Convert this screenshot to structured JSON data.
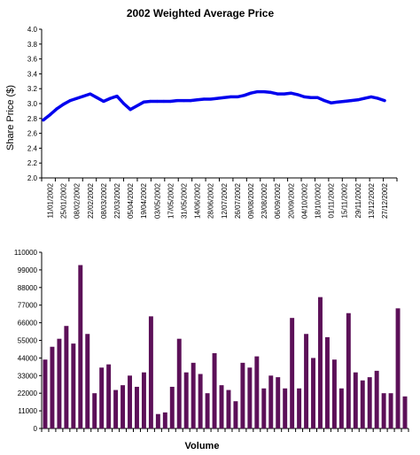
{
  "chart_data": [
    {
      "type": "line",
      "title": "2002 Weighted Average Price",
      "xlabel": "",
      "ylabel": "Share Price ($)",
      "ylim": [
        2.0,
        4.0
      ],
      "yticks": [
        "2.0",
        "2.2",
        "2.4",
        "2.6",
        "2.8",
        "3.0",
        "3.2",
        "3.4",
        "3.6",
        "3.8",
        "4.0"
      ],
      "grid": false,
      "color": "#0000ee",
      "xtick_labels": [
        "11/01/2002",
        "25/01/2002",
        "08/02/2002",
        "22/02/2002",
        "08/03/2002",
        "22/03/2002",
        "05/04/2002",
        "19/04/2002",
        "03/05/2002",
        "17/05/2002",
        "31/05/2002",
        "14/06/2002",
        "28/06/2002",
        "12/07/2002",
        "26/07/2002",
        "09/08/2002",
        "23/08/2002",
        "06/09/2002",
        "20/09/2002",
        "04/10/2002",
        "18/10/2002",
        "01/11/2002",
        "15/11/2002",
        "29/11/2002",
        "13/12/2002",
        "27/12/2002"
      ],
      "x": [
        "04/01/2002",
        "11/01/2002",
        "18/01/2002",
        "25/01/2002",
        "01/02/2002",
        "08/02/2002",
        "15/02/2002",
        "22/02/2002",
        "01/03/2002",
        "08/03/2002",
        "15/03/2002",
        "22/03/2002",
        "29/03/2002",
        "05/04/2002",
        "12/04/2002",
        "19/04/2002",
        "26/04/2002",
        "03/05/2002",
        "10/05/2002",
        "17/05/2002",
        "24/05/2002",
        "31/05/2002",
        "07/06/2002",
        "14/06/2002",
        "21/06/2002",
        "28/06/2002",
        "05/07/2002",
        "12/07/2002",
        "19/07/2002",
        "26/07/2002",
        "02/08/2002",
        "09/08/2002",
        "16/08/2002",
        "23/08/2002",
        "30/08/2002",
        "06/09/2002",
        "13/09/2002",
        "20/09/2002",
        "27/09/2002",
        "04/10/2002",
        "11/10/2002",
        "18/10/2002",
        "25/10/2002",
        "01/11/2002",
        "08/11/2002",
        "15/11/2002",
        "22/11/2002",
        "29/11/2002",
        "06/12/2002",
        "13/12/2002",
        "20/12/2002",
        "27/12/2002"
      ],
      "values": [
        2.78,
        2.85,
        2.93,
        2.99,
        3.04,
        3.07,
        3.1,
        3.13,
        3.08,
        3.03,
        3.07,
        3.1,
        3.0,
        2.92,
        2.97,
        3.02,
        3.03,
        3.03,
        3.03,
        3.03,
        3.04,
        3.04,
        3.04,
        3.05,
        3.06,
        3.06,
        3.07,
        3.08,
        3.09,
        3.09,
        3.11,
        3.14,
        3.16,
        3.16,
        3.15,
        3.13,
        3.13,
        3.14,
        3.12,
        3.09,
        3.08,
        3.08,
        3.04,
        3.01,
        3.02,
        3.03,
        3.04,
        3.05,
        3.07,
        3.09,
        3.07,
        3.04
      ]
    },
    {
      "type": "bar",
      "title": "",
      "xlabel": "Volume",
      "ylabel": "",
      "ylim": [
        0,
        110000
      ],
      "yticks": [
        "0",
        "11000",
        "22000",
        "33000",
        "44000",
        "55000",
        "66000",
        "77000",
        "88000",
        "99000",
        "110000"
      ],
      "grid": false,
      "color": "#5c1058",
      "values": [
        43000,
        51000,
        56000,
        64000,
        53000,
        102000,
        59000,
        22000,
        38000,
        40000,
        24000,
        27000,
        33000,
        26000,
        35000,
        70000,
        9000,
        10000,
        26000,
        56000,
        35000,
        41000,
        34000,
        22000,
        47000,
        27000,
        24000,
        17000,
        41000,
        38000,
        45000,
        25000,
        33000,
        32000,
        25000,
        69000,
        25000,
        59000,
        44000,
        82000,
        57000,
        43000,
        25000,
        72000,
        35000,
        30000,
        32000,
        36000,
        22000,
        22000,
        75000,
        20000
      ]
    }
  ]
}
